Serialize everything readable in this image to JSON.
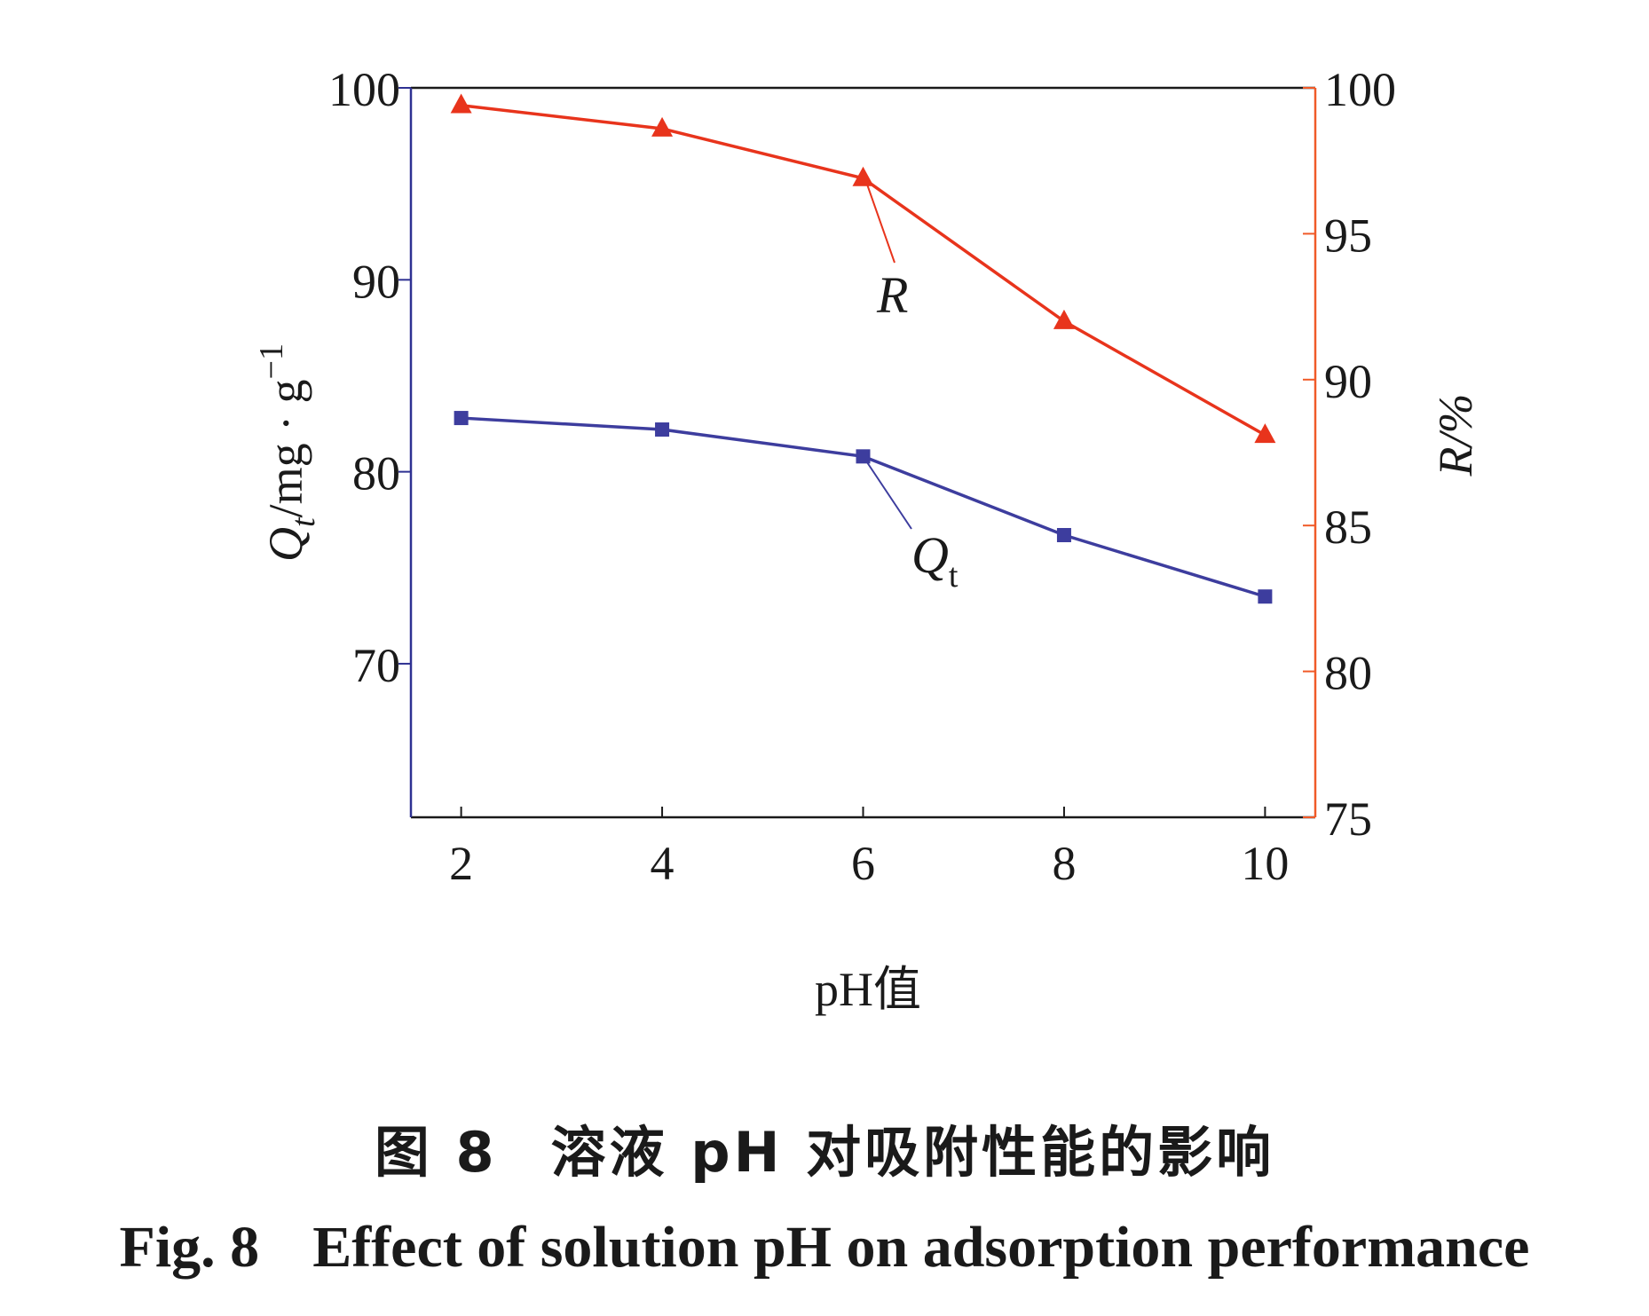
{
  "chart_data": {
    "type": "line",
    "x": [
      2,
      4,
      6,
      8,
      10
    ],
    "xlabel": "pH值",
    "xticks": [
      "2",
      "4",
      "6",
      "8",
      "10"
    ],
    "xlim": [
      1.5,
      10.5
    ],
    "left_axis": {
      "label_parts": [
        "Q",
        "t",
        "/mg · g",
        "−1"
      ],
      "ylim": [
        62,
        100
      ],
      "ticks": [
        "70",
        "80",
        "90",
        "100"
      ],
      "tick_values": [
        70,
        80,
        90,
        100
      ],
      "color": "#2e3192"
    },
    "right_axis": {
      "label": "R/%",
      "ylim": [
        75,
        100
      ],
      "ticks": [
        "75",
        "80",
        "85",
        "90",
        "95",
        "100"
      ],
      "tick_values": [
        75,
        80,
        85,
        90,
        95,
        100
      ],
      "color": "#f05a28"
    },
    "series": [
      {
        "name": "R",
        "label": "R",
        "axis": "right",
        "marker": "triangle",
        "color": "#e8341c",
        "values": [
          99.4,
          98.6,
          96.9,
          92.0,
          88.1
        ]
      },
      {
        "name": "Qt",
        "label_main": "Q",
        "label_sub": "t",
        "axis": "left",
        "marker": "square",
        "color": "#3d3d9e",
        "values": [
          82.8,
          82.2,
          80.8,
          76.7,
          73.5
        ]
      }
    ]
  },
  "caption": {
    "cn_num": "图 8",
    "cn_text": "溶液 pH 对吸附性能的影响",
    "en_num": "Fig. 8",
    "en_text": "Effect of solution pH on adsorption performance"
  }
}
